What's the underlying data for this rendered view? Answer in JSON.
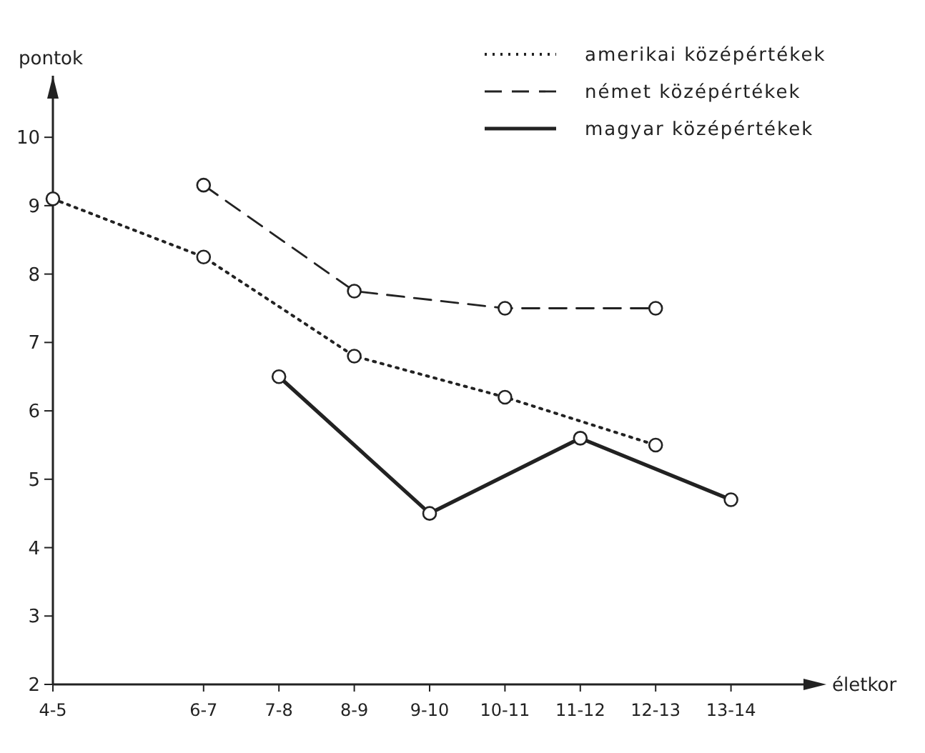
{
  "chart_data": {
    "type": "line",
    "xlabel": "életkor",
    "ylabel": "pontok",
    "categories": [
      "4-5",
      null,
      "6-7",
      "7-8",
      "8-9",
      "9-10",
      "10-11",
      "11-12",
      "12-13",
      "13-14"
    ],
    "ylim": [
      2,
      10.9
    ],
    "yticks": [
      2,
      3,
      4,
      5,
      6,
      7,
      8,
      9,
      10
    ],
    "grid": false,
    "legend": "top right",
    "marker": "circle",
    "series": [
      {
        "name": "amerikai középértékek",
        "color": "#222222",
        "line_style": "dotted",
        "x": [
          "4-5",
          "6-7",
          "8-9",
          "10-11",
          "12-13"
        ],
        "values": [
          9.1,
          8.25,
          6.8,
          6.2,
          5.5
        ]
      },
      {
        "name": "német középértékek",
        "color": "#222222",
        "line_style": "dashed",
        "x": [
          "6-7",
          "8-9",
          "10-11",
          "12-13"
        ],
        "values": [
          9.3,
          7.75,
          7.5,
          7.5
        ]
      },
      {
        "name": "magyar középértékek",
        "color": "#222222",
        "line_style": "solid",
        "x": [
          "7-8",
          "9-10",
          "11-12",
          "13-14"
        ],
        "values": [
          6.5,
          4.5,
          5.6,
          4.7
        ]
      }
    ]
  }
}
